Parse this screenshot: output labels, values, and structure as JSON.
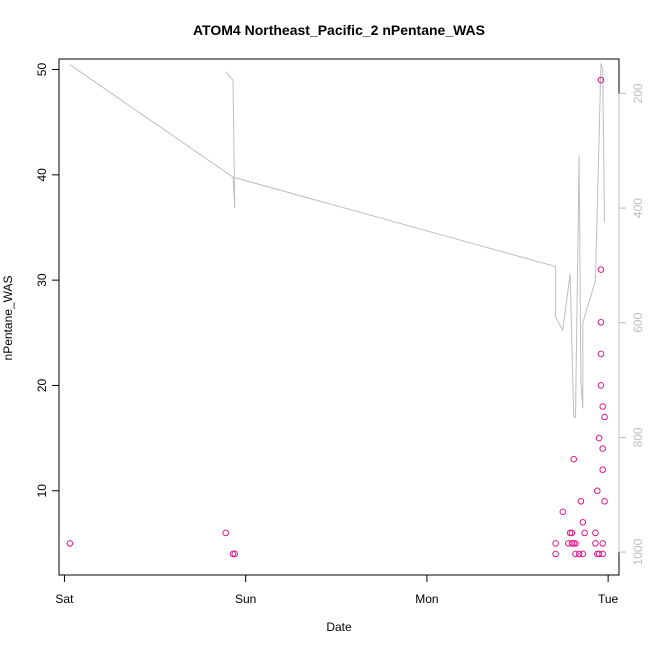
{
  "chart_data": {
    "type": "scatter",
    "title": "ATOM4 Northeast_Pacific_2 nPentane_WAS",
    "xlabel": "Date",
    "ylabel": "nPentane_WAS",
    "x_ticks": [
      {
        "label": "Sat",
        "day": 0
      },
      {
        "label": "Sun",
        "day": 1
      },
      {
        "label": "Mon",
        "day": 2
      },
      {
        "label": "Tue",
        "day": 3
      }
    ],
    "xlim": [
      -0.03,
      3.06
    ],
    "ylim": [
      2,
      51
    ],
    "y_ticks": [
      10,
      20,
      30,
      40,
      50
    ],
    "y2lim": [
      1040,
      140
    ],
    "y2_ticks": [
      200,
      400,
      600,
      800,
      1000
    ],
    "series": [
      {
        "kind": "points",
        "color": "#e0198a",
        "points": [
          [
            0.03,
            5
          ],
          [
            0.89,
            6
          ],
          [
            0.93,
            4
          ],
          [
            0.94,
            4
          ],
          [
            2.71,
            5
          ],
          [
            2.71,
            4
          ],
          [
            2.75,
            8
          ],
          [
            2.78,
            5
          ],
          [
            2.79,
            6
          ],
          [
            2.8,
            5
          ],
          [
            2.8,
            6
          ],
          [
            2.81,
            13
          ],
          [
            2.81,
            5
          ],
          [
            2.82,
            5
          ],
          [
            2.82,
            4
          ],
          [
            2.84,
            4
          ],
          [
            2.85,
            9
          ],
          [
            2.86,
            4
          ],
          [
            2.86,
            7
          ],
          [
            2.87,
            6
          ],
          [
            2.93,
            6
          ],
          [
            2.93,
            5
          ],
          [
            2.94,
            4
          ],
          [
            2.94,
            10
          ],
          [
            2.95,
            4
          ],
          [
            2.95,
            15
          ],
          [
            2.96,
            31
          ],
          [
            2.96,
            49
          ],
          [
            2.96,
            26
          ],
          [
            2.96,
            23
          ],
          [
            2.96,
            20
          ],
          [
            2.97,
            18
          ],
          [
            2.97,
            14
          ],
          [
            2.97,
            12
          ],
          [
            2.97,
            5
          ],
          [
            2.97,
            4
          ],
          [
            2.98,
            17
          ],
          [
            2.98,
            9
          ]
        ]
      },
      {
        "kind": "line",
        "color": "#bebebe",
        "axis": "right",
        "segments": [
          [
            [
              0.03,
              150
            ],
            [
              0.93,
              346
            ],
            [
              0.94,
              400
            ],
            [
              0.93,
              177
            ],
            [
              0.89,
              162
            ]
          ],
          [
            [
              0.93,
              346
            ],
            [
              2.71,
              502
            ],
            [
              2.71,
              590
            ],
            [
              2.75,
              613
            ],
            [
              2.79,
              515
            ],
            [
              2.81,
              763
            ],
            [
              2.82,
              765
            ],
            [
              2.84,
              308
            ],
            [
              2.85,
              702
            ],
            [
              2.86,
              749
            ],
            [
              2.86,
              600
            ],
            [
              2.93,
              527
            ],
            [
              2.95,
              276
            ],
            [
              2.96,
              149
            ],
            [
              2.97,
              155
            ],
            [
              2.98,
              425
            ]
          ]
        ]
      }
    ],
    "grid": false,
    "legend": "none"
  }
}
